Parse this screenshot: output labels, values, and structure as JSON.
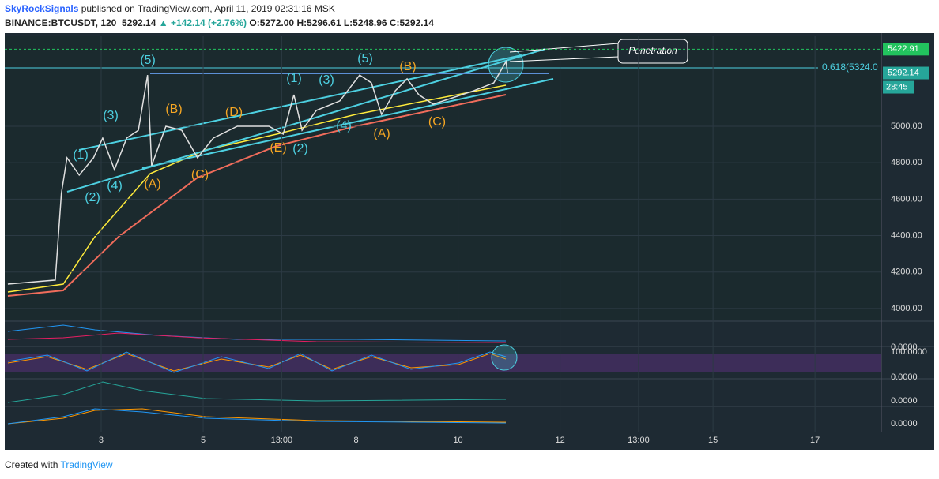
{
  "header": {
    "author": "SkyRockSignals",
    "published": "published on TradingView.com, April 11, 2019 02:31:16 MSK",
    "symbol": "BINANCE:BTCUSDT, 120",
    "last": "5292.14",
    "change": "▲ +142.14 (+2.76%)",
    "open": "O:5272.00",
    "high": "H:5296.61",
    "low": "L:5248.96",
    "close": "C:5292.14"
  },
  "chart_data": {
    "type": "line",
    "color": "#e0e0e0",
    "x": [
      1.17,
      2.1,
      2.22,
      2.33,
      2.57,
      2.85,
      3.03,
      3.26,
      3.5,
      3.73,
      3.91,
      3.99,
      4.27,
      4.58,
      4.89,
      5.2,
      5.67,
      6.29,
      6.57,
      6.78,
      6.94,
      7.22,
      7.68,
      8.07,
      8.3,
      8.5,
      8.77,
      9.0,
      9.23,
      9.51,
      9.85,
      10.31,
      10.7,
      10.94,
      10.97
    ],
    "values": [
      4134,
      4156,
      4632,
      4827,
      4732,
      4827,
      4935,
      4762,
      4935,
      4978,
      5281,
      4784,
      5000,
      4978,
      4827,
      4935,
      5000,
      5000,
      4957,
      5173,
      4978,
      5087,
      5139,
      5281,
      5238,
      5065,
      5195,
      5260,
      5173,
      5121,
      5152,
      5195,
      5238,
      5355,
      5292.14
    ],
    "xlim": [
      1.14,
      18.3
    ],
    "xticks": [
      {
        "value": 3,
        "label": "3"
      },
      {
        "value": 5,
        "label": "5"
      },
      {
        "value": 6.54,
        "label": "13:00"
      },
      {
        "value": 8,
        "label": "8"
      },
      {
        "value": 10,
        "label": "10"
      },
      {
        "value": 12,
        "label": "12"
      },
      {
        "value": 13.54,
        "label": "13:00"
      },
      {
        "value": 15,
        "label": "15"
      },
      {
        "value": 17,
        "label": "17"
      }
    ],
    "ylim": [
      3939,
      5498
    ],
    "yticks": [
      {
        "value": 4000,
        "label": "4000.00"
      },
      {
        "value": 4200,
        "label": "4200.00"
      },
      {
        "value": 4400,
        "label": "4400.00"
      },
      {
        "value": 4600,
        "label": "4600.00"
      },
      {
        "value": 4800,
        "label": "4800.00"
      },
      {
        "value": 5000,
        "label": "5000.00"
      }
    ],
    "grid": true,
    "price_tags": [
      {
        "value": 5422.91,
        "label": "5422.91",
        "color": "#22c35e"
      },
      {
        "value": 5292.14,
        "label": "5292.14",
        "color": "#26a69a"
      }
    ],
    "countdown": "28:45",
    "fib_label": "0.618(5324.0",
    "callout": "Penetration",
    "impulse_labels": [
      "(5)",
      "(1)",
      "(2)",
      "(3)",
      "(4)",
      "(1)",
      "(3)",
      "(5)",
      "(4)",
      "(2)"
    ],
    "correction_labels": [
      "(B)",
      "(D)",
      "(A)",
      "(C)",
      "(E)",
      "(A)",
      "(B)",
      "(C)"
    ],
    "indicator_labels": [
      "0.0000",
      "100.0000",
      "0.0000",
      "0.0000",
      "0.0000"
    ]
  },
  "footer": {
    "created": "Created with",
    "brand": "TradingView"
  }
}
